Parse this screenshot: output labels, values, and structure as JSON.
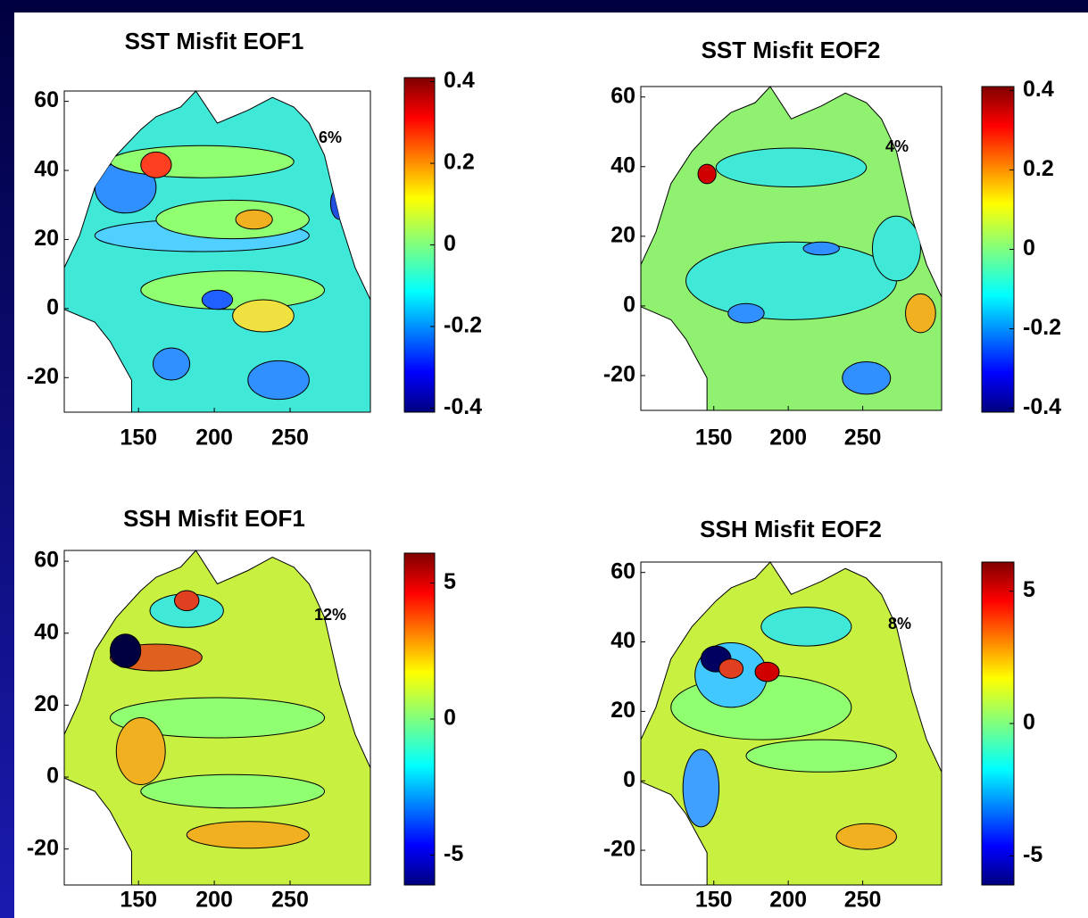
{
  "chart_data": [
    {
      "type": "contour",
      "title": "SST Misfit EOF1",
      "annotation": "6%",
      "colormap": "jet",
      "xlim": [
        101,
        303
      ],
      "ylim": [
        -30,
        63
      ],
      "xticks": [
        150,
        200,
        250
      ],
      "yticks": [
        60,
        40,
        20,
        0,
        -20
      ],
      "clim": [
        -0.41,
        0.41
      ],
      "cticks": [
        0.4,
        0.2,
        0,
        -0.2,
        -0.4
      ]
    },
    {
      "type": "contour",
      "title": "SST Misfit EOF2",
      "annotation": "4%",
      "colormap": "jet",
      "xlim": [
        101,
        303
      ],
      "ylim": [
        -30,
        63
      ],
      "xticks": [
        150,
        200,
        250
      ],
      "yticks": [
        60,
        40,
        20,
        0,
        -20
      ],
      "clim": [
        -0.41,
        0.41
      ],
      "cticks": [
        0.4,
        0.2,
        0,
        -0.2,
        -0.4
      ]
    },
    {
      "type": "contour",
      "title": "SSH Misfit EOF1",
      "annotation": "12%",
      "colormap": "jet",
      "xlim": [
        101,
        303
      ],
      "ylim": [
        -30,
        63
      ],
      "xticks": [
        150,
        200,
        250
      ],
      "yticks": [
        60,
        40,
        20,
        0,
        -20
      ],
      "clim": [
        -6.1,
        6.1
      ],
      "cticks": [
        5,
        0,
        -5
      ]
    },
    {
      "type": "contour",
      "title": "SSH Misfit EOF2",
      "annotation": "8%",
      "colormap": "jet",
      "xlim": [
        101,
        303
      ],
      "ylim": [
        -30,
        63
      ],
      "xticks": [
        150,
        200,
        250
      ],
      "yticks": [
        60,
        40,
        20,
        0,
        -20
      ],
      "clim": [
        -6.1,
        6.1
      ],
      "cticks": [
        5,
        0,
        -5
      ]
    }
  ]
}
